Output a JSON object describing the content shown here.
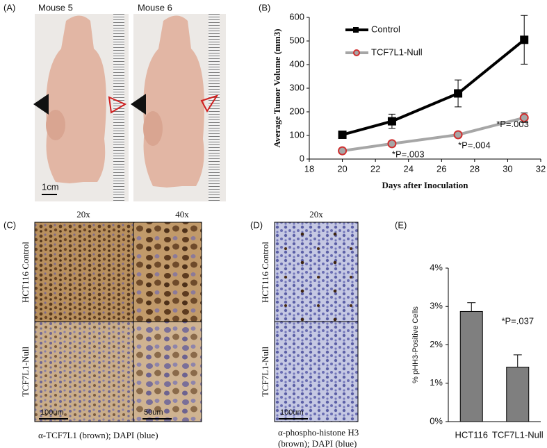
{
  "panel_labels": [
    "(A)",
    "(B)",
    "(C)",
    "(D)",
    "(E)"
  ],
  "panel_a": {
    "labels": [
      "Mouse 5",
      "Mouse 6"
    ],
    "scale": "1cm"
  },
  "panel_c": {
    "columns": [
      "20x",
      "40x"
    ],
    "rows": [
      "HCT116 Control",
      "TCF7L1-Null"
    ],
    "scales": [
      "100um",
      "50um"
    ],
    "caption": "α-TCF7L1 (brown); DAPI (blue)"
  },
  "panel_d": {
    "column": "20x",
    "rows": [
      "HCT116 Control",
      "TCF7L1-Null"
    ],
    "scale": "100um",
    "caption": [
      "α-phospho-histone H3",
      "(brown); DAPI (blue)"
    ]
  },
  "chart_data": [
    {
      "type": "line",
      "x_label": "Days after Inoculation",
      "y_label": "Average Tumor Volume (mm3)",
      "xlim": [
        18,
        32
      ],
      "xticks": [
        18,
        20,
        22,
        24,
        26,
        28,
        30,
        32
      ],
      "ylim": [
        0,
        600
      ],
      "yticks": [
        0,
        100,
        200,
        300,
        400,
        500,
        600
      ],
      "series": [
        {
          "name": "Control",
          "color": "#000000",
          "marker": "square",
          "x": [
            20,
            23,
            27,
            31
          ],
          "values": [
            103,
            160,
            278,
            505
          ],
          "errors": [
            10,
            30,
            57,
            103
          ]
        },
        {
          "name": "TCF7L1-Null",
          "color": "#a6a6a6",
          "marker": "circle",
          "marker_edge": "#d03030",
          "x": [
            20,
            23,
            27,
            31
          ],
          "values": [
            35,
            65,
            103,
            175
          ],
          "errors": [
            5,
            8,
            10,
            20
          ]
        }
      ],
      "annotations": [
        "*P=.003",
        "*P=.004",
        "*P=.003"
      ]
    },
    {
      "type": "bar",
      "y_label": "% pHH3-Positive Cells",
      "categories": [
        "HCT116",
        "TCF7L1-Null"
      ],
      "values": [
        2.87,
        1.42
      ],
      "errors": [
        0.23,
        0.32
      ],
      "color": "#7f7f7f",
      "ylim": [
        0,
        4
      ],
      "yticks": [
        {
          "value": 0,
          "label": "0%"
        },
        {
          "value": 1,
          "label": "1%"
        },
        {
          "value": 2,
          "label": "2%"
        },
        {
          "value": 3,
          "label": "3%"
        },
        {
          "value": 4,
          "label": "4%"
        }
      ],
      "annotation": "*P=.037"
    }
  ]
}
